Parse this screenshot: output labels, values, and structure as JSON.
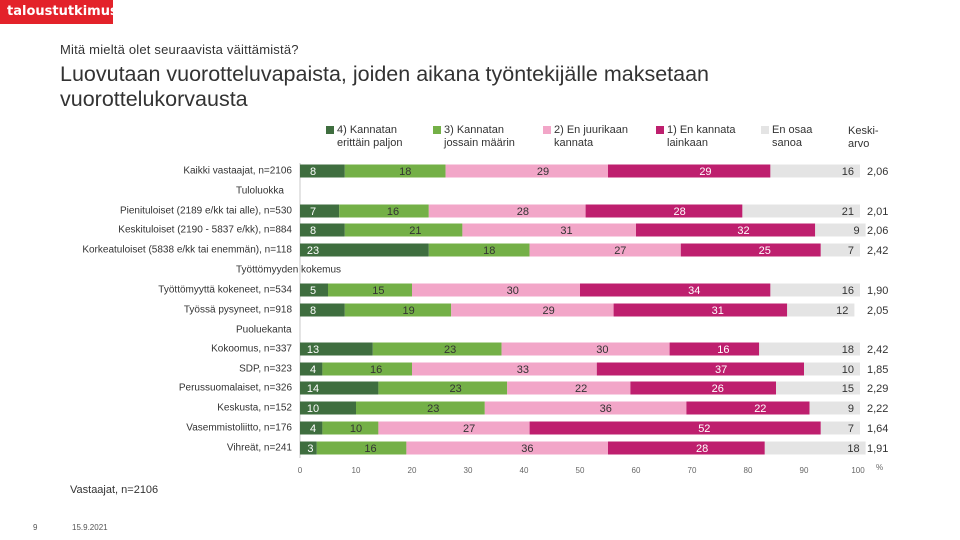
{
  "brand": {
    "logo_text": "taloustutkimus"
  },
  "header": {
    "question": "Mitä mieltä olet seuraavista väittämistä?",
    "title": "Luovutaan vuorotteluvapaista, joiden aikana työntekijälle maksetaan vuorottelukorvausta"
  },
  "legend": {
    "items": [
      {
        "label_line1": "4) Kannatan",
        "label_line2": "erittäin paljon",
        "color": "#3f6e3f"
      },
      {
        "label_line1": "3) Kannatan",
        "label_line2": "jossain määrin",
        "color": "#74b047"
      },
      {
        "label_line1": "2) En juurikaan",
        "label_line2": "kannata",
        "color": "#f2a6c8"
      },
      {
        "label_line1": "1) En kannata",
        "label_line2": "lainkaan",
        "color": "#be1f6e"
      },
      {
        "label_line1": "En osaa",
        "label_line2": "sanoa",
        "color": "#e4e4e4"
      }
    ],
    "mean_header_line1": "Keski-",
    "mean_header_line2": "arvo"
  },
  "chart_data": {
    "type": "bar",
    "orientation": "horizontal",
    "stacked": true,
    "title": "Luovutaan vuorotteluvapaista, joiden aikana työntekijälle maksetaan vuorottelukorvausta",
    "xlim": [
      0,
      100
    ],
    "xticks": [
      "0",
      "10",
      "20",
      "30",
      "40",
      "50",
      "60",
      "70",
      "80",
      "90",
      "100"
    ],
    "x_unit": "%",
    "series_names": [
      "4) Kannatan erittäin paljon",
      "3) Kannatan jossain määrin",
      "2) En juurikaan kannata",
      "1) En kannata lainkaan",
      "En osaa sanoa"
    ],
    "colors": [
      "#3f6e3f",
      "#74b047",
      "#f2a6c8",
      "#be1f6e",
      "#e4e4e4"
    ],
    "rows": [
      {
        "type": "bar",
        "label": "Kaikki vastaajat, n=2106",
        "values": [
          8,
          18,
          29,
          29,
          16
        ],
        "mean": "2,06"
      },
      {
        "type": "group",
        "label": "Tuloluokka"
      },
      {
        "type": "bar",
        "label": "Pienituloiset (2189 e/kk tai alle), n=530",
        "values": [
          7,
          16,
          28,
          28,
          21
        ],
        "mean": "2,01"
      },
      {
        "type": "bar",
        "label": "Keskituloiset (2190 - 5837 e/kk), n=884",
        "values": [
          8,
          21,
          31,
          32,
          9
        ],
        "mean": "2,06"
      },
      {
        "type": "bar",
        "label": "Korkeatuloiset (5838 e/kk tai enemmän), n=118",
        "values": [
          23,
          18,
          27,
          25,
          7
        ],
        "mean": "2,42"
      },
      {
        "type": "group",
        "label": "Työttömyyden kokemus"
      },
      {
        "type": "bar",
        "label": "Työttömyyttä kokeneet, n=534",
        "values": [
          5,
          15,
          30,
          34,
          16
        ],
        "mean": "1,90"
      },
      {
        "type": "bar",
        "label": "Työssä pysyneet, n=918",
        "values": [
          8,
          19,
          29,
          31,
          12
        ],
        "mean": "2,05"
      },
      {
        "type": "group",
        "label": "Puoluekanta"
      },
      {
        "type": "bar",
        "label": "Kokoomus, n=337",
        "values": [
          13,
          23,
          30,
          16,
          18
        ],
        "mean": "2,42"
      },
      {
        "type": "bar",
        "label": "SDP, n=323",
        "values": [
          4,
          16,
          33,
          37,
          10
        ],
        "mean": "1,85"
      },
      {
        "type": "bar",
        "label": "Perussuomalaiset, n=326",
        "values": [
          14,
          23,
          22,
          26,
          15
        ],
        "mean": "2,29"
      },
      {
        "type": "bar",
        "label": "Keskusta, n=152",
        "values": [
          10,
          23,
          36,
          22,
          9
        ],
        "mean": "2,22"
      },
      {
        "type": "bar",
        "label": "Vasemmistoliitto, n=176",
        "values": [
          4,
          10,
          27,
          52,
          7
        ],
        "mean": "1,64"
      },
      {
        "type": "bar",
        "label": "Vihreät, n=241",
        "values": [
          3,
          16,
          36,
          28,
          18
        ],
        "mean": "1,91"
      }
    ]
  },
  "footer": {
    "note": "Vastaajat, n=2106",
    "page": "9",
    "date": "15.9.2021"
  }
}
